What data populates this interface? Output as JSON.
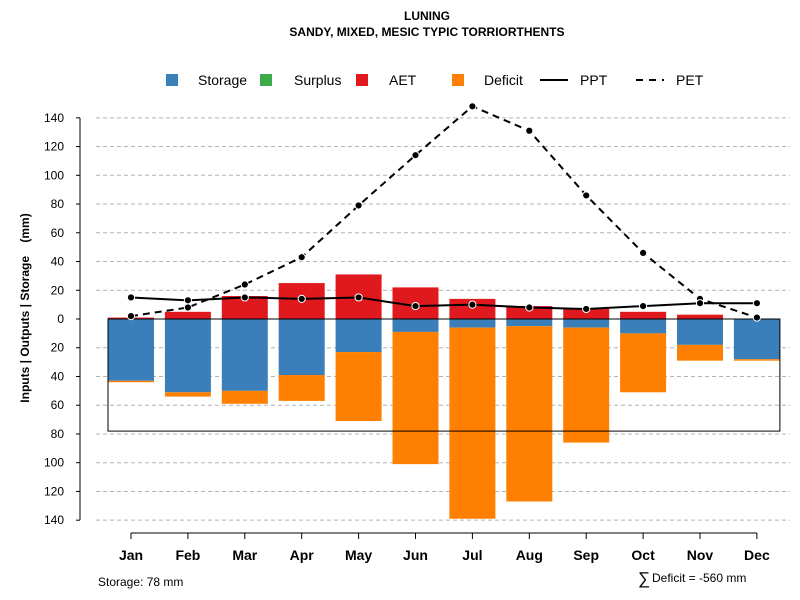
{
  "chart_data": {
    "type": "bar",
    "title": "LUNING",
    "subtitle": "SANDY, MIXED, MESIC TYPIC TORRIORTHENTS",
    "ylabel": "Inputs | Outputs | Storage    (mm)",
    "categories": [
      "Jan",
      "Feb",
      "Mar",
      "Apr",
      "May",
      "Jun",
      "Jul",
      "Aug",
      "Sep",
      "Oct",
      "Nov",
      "Dec"
    ],
    "y_ticks_up": [
      0,
      20,
      40,
      60,
      80,
      100,
      120,
      140
    ],
    "y_ticks_down": [
      20,
      40,
      60,
      80,
      100,
      120,
      140
    ],
    "ylim": [
      -140,
      150
    ],
    "legend": [
      {
        "name": "Storage",
        "color": "#3a7fba",
        "kind": "box"
      },
      {
        "name": "Surplus",
        "color": "#3faa4a",
        "kind": "box"
      },
      {
        "name": "AET",
        "color": "#e0191f",
        "kind": "box"
      },
      {
        "name": "Deficit",
        "color": "#ff8000",
        "kind": "box"
      },
      {
        "name": "PPT",
        "color": "#000000",
        "kind": "solid"
      },
      {
        "name": "PET",
        "color": "#000000",
        "kind": "dashed"
      }
    ],
    "series": [
      {
        "name": "AET",
        "values": [
          1,
          5,
          16,
          25,
          31,
          22,
          14,
          9,
          7,
          5,
          3,
          0
        ]
      },
      {
        "name": "Surplus",
        "values": [
          0,
          0,
          0,
          0,
          0,
          0,
          0,
          0,
          0,
          0,
          0,
          0
        ]
      },
      {
        "name": "Storage",
        "values": [
          43,
          51,
          50,
          39,
          23,
          9,
          6,
          5,
          6,
          10,
          18,
          28
        ]
      },
      {
        "name": "Deficit",
        "values": [
          1,
          3,
          9,
          18,
          48,
          92,
          133,
          122,
          80,
          41,
          11,
          1
        ]
      },
      {
        "name": "PPT",
        "values": [
          15,
          13,
          15,
          14,
          15,
          9,
          10,
          8,
          7,
          9,
          11,
          11
        ]
      },
      {
        "name": "PET",
        "values": [
          2,
          8,
          24,
          43,
          79,
          114,
          148,
          131,
          86,
          46,
          14,
          1
        ]
      }
    ],
    "storage_capacity": 78
  },
  "footer": {
    "storage": "Storage: 78 mm",
    "deficit_symbol": "∑",
    "deficit": "Deficit = -560 mm"
  }
}
